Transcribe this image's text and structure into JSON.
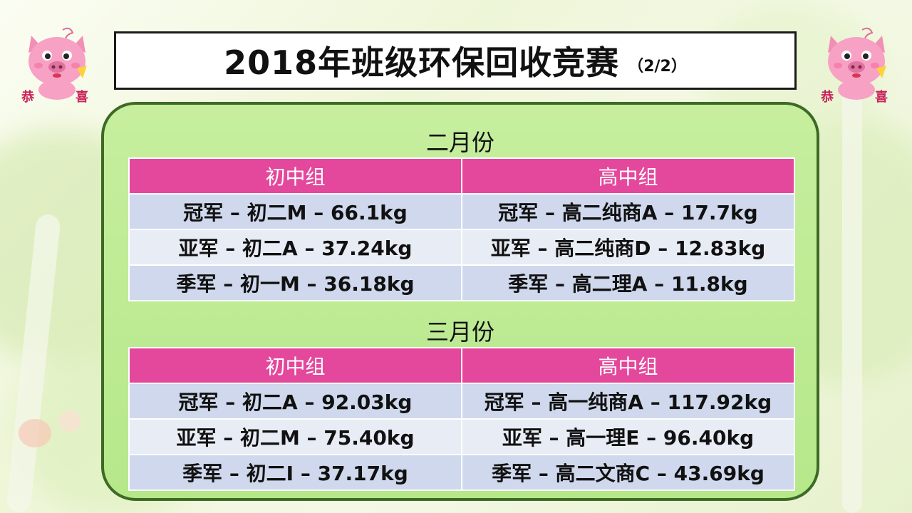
{
  "title": {
    "main": "2018年班级环保回收竞赛",
    "page": "（2/2）"
  },
  "mascot": {
    "text_left": "恭",
    "text_right": "喜"
  },
  "colors": {
    "header_bg": "#e4489c",
    "panel_bg": "#b6e88a",
    "panel_border": "#3d6a24",
    "row_odd": "#cfd8ec",
    "row_even": "#e8ecf5"
  },
  "sections": [
    {
      "month": "二月份",
      "headers": [
        "初中组",
        "高中组"
      ],
      "rows": [
        [
          "冠军 –  初二M – 66.1kg",
          "冠军 –  高二纯商A – 17.7kg"
        ],
        [
          "亚军 –  初二A – 37.24kg",
          "亚军 – 高二纯商D – 12.83kg"
        ],
        [
          "季军 –  初一M – 36.18kg",
          "季军 –  高二理A – 11.8kg"
        ]
      ]
    },
    {
      "month": "三月份",
      "headers": [
        "初中组",
        "高中组"
      ],
      "rows": [
        [
          "冠军 –  初二A – 92.03kg",
          "冠军 –  高一纯商A – 117.92kg"
        ],
        [
          "亚军 –  初二M – 75.40kg",
          "亚军 – 高一理E – 96.40kg"
        ],
        [
          "季军 –  初二I – 37.17kg",
          "季军 –  高二文商C – 43.69kg"
        ]
      ]
    }
  ]
}
